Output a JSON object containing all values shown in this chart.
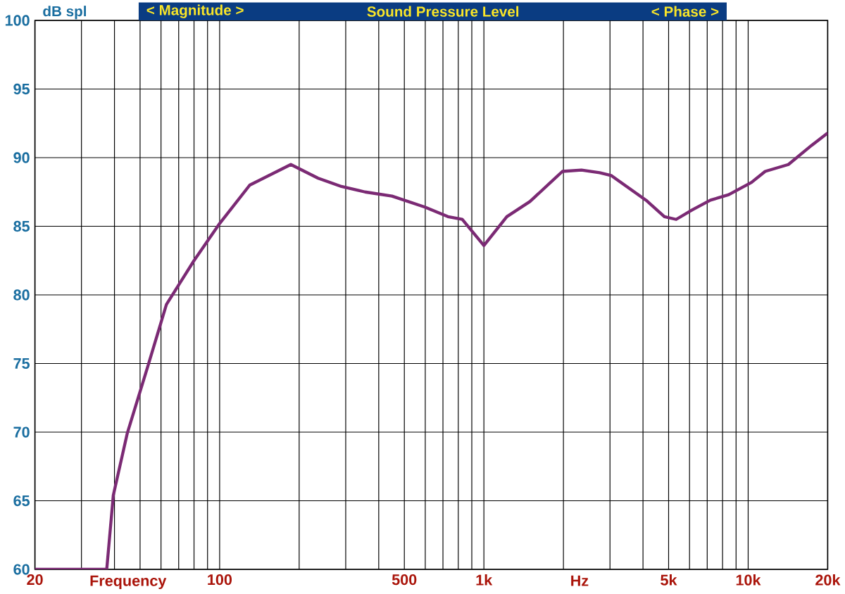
{
  "chart_data": {
    "type": "line",
    "title": "Sound Pressure Level",
    "ylabel": "dB spl",
    "xlabel": "Frequency",
    "annotations": [
      "< Magnitude >",
      "< Phase >",
      "Hz"
    ],
    "log": "x",
    "grid": true,
    "marker": "none",
    "xlim": [
      20,
      20000
    ],
    "ylim": [
      60,
      100
    ],
    "xticks": [
      20,
      {
        "value": 30,
        "label": null
      },
      {
        "value": 40,
        "label": null
      },
      {
        "value": 50,
        "label": null
      },
      {
        "value": 60,
        "label": null
      },
      {
        "value": 70,
        "label": null
      },
      {
        "value": 80,
        "label": null
      },
      {
        "value": 90,
        "label": null
      },
      100,
      {
        "value": 200,
        "label": null
      },
      {
        "value": 300,
        "label": null
      },
      {
        "value": 400,
        "label": null
      },
      500,
      {
        "value": 600,
        "label": null
      },
      {
        "value": 700,
        "label": null
      },
      {
        "value": 800,
        "label": null
      },
      {
        "value": 900,
        "label": null
      },
      {
        "value": 1000,
        "label": "1k"
      },
      {
        "value": 2000,
        "label": null
      },
      {
        "value": 3000,
        "label": null
      },
      {
        "value": 4000,
        "label": null
      },
      {
        "value": 5000,
        "label": "5k"
      },
      {
        "value": 6000,
        "label": null
      },
      {
        "value": 7000,
        "label": null
      },
      {
        "value": 8000,
        "label": null
      },
      {
        "value": 9000,
        "label": null
      },
      {
        "value": 10000,
        "label": "10k"
      },
      {
        "value": 20000,
        "label": "20k"
      }
    ],
    "yticks": [
      60,
      65,
      70,
      75,
      80,
      85,
      90,
      95,
      100
    ],
    "x": [
      20,
      37.4,
      39.6,
      44.7,
      53.5,
      62.9,
      80,
      100,
      130,
      186,
      236,
      289,
      355,
      449,
      598,
      731,
      828,
      1000,
      1221,
      1493,
      1983,
      2340,
      2741,
      3030,
      4106,
      4820,
      5340,
      6150,
      7200,
      8440,
      10300,
      11600,
      14200,
      17400,
      20000
    ],
    "series": [
      {
        "color": "#7b2a74",
        "values": [
          60,
          60,
          65.4,
          69.9,
          74.8,
          79.3,
          82.5,
          85.2,
          88.0,
          89.5,
          88.5,
          87.9,
          87.5,
          87.2,
          86.4,
          85.7,
          85.5,
          83.6,
          85.7,
          86.8,
          89.0,
          89.1,
          88.9,
          88.7,
          86.9,
          85.7,
          85.5,
          86.2,
          86.9,
          87.3,
          88.2,
          89.0,
          89.5,
          90.9,
          91.8
        ]
      }
    ]
  }
}
